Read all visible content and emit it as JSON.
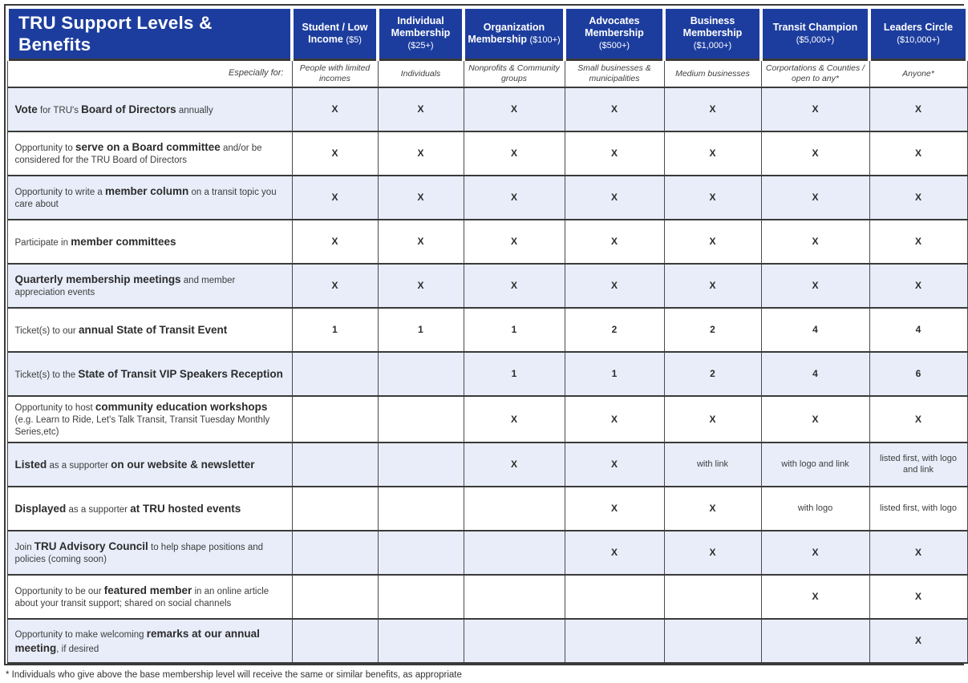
{
  "table": {
    "title": "TRU Support Levels & Benefits",
    "especially_label": "Especially for:",
    "columns": [
      {
        "name": "Student / Low Income",
        "price": "($5)",
        "especially": "People with limited incomes"
      },
      {
        "name": "Individual Membership",
        "price": "($25+)",
        "especially": "Individuals"
      },
      {
        "name": "Organization Membership",
        "price": "($100+)",
        "especially": "Nonprofits & Community groups"
      },
      {
        "name": "Advocates Membership",
        "price": "($500+)",
        "especially": "Small businesses & municipalities"
      },
      {
        "name": "Business Membership",
        "price": "($1,000+)",
        "especially": "Medium businesses"
      },
      {
        "name": "Transit Champion",
        "price": "($5,000+)",
        "especially": "Corportations & Counties / open to any*"
      },
      {
        "name": "Leaders Circle",
        "price": "($10,000+)",
        "especially": "Anyone*"
      }
    ],
    "rows": [
      {
        "benefit": "**Vote** for TRU's **Board of Directors** annually",
        "cells": [
          "X",
          "X",
          "X",
          "X",
          "X",
          "X",
          "X"
        ]
      },
      {
        "benefit": "Opportunity to **serve on a Board committee** and/or be considered for the TRU Board of Directors",
        "cells": [
          "X",
          "X",
          "X",
          "X",
          "X",
          "X",
          "X"
        ]
      },
      {
        "benefit": "Opportunity to write a **member column** on a transit topic you care about",
        "cells": [
          "X",
          "X",
          "X",
          "X",
          "X",
          "X",
          "X"
        ]
      },
      {
        "benefit": "Participate in **member committees**",
        "cells": [
          "X",
          "X",
          "X",
          "X",
          "X",
          "X",
          "X"
        ]
      },
      {
        "benefit": "**Quarterly membership meetings** and member appreciation events",
        "cells": [
          "X",
          "X",
          "X",
          "X",
          "X",
          "X",
          "X"
        ]
      },
      {
        "benefit": "Ticket(s) to our **annual State of Transit Event**",
        "cells": [
          "1",
          "1",
          "1",
          "2",
          "2",
          "4",
          "4"
        ]
      },
      {
        "benefit": "Ticket(s) to the **State of Transit VIP Speakers Reception**",
        "cells": [
          "",
          "",
          "1",
          "1",
          "2",
          "4",
          "6"
        ]
      },
      {
        "benefit": "Opportunity to host **community education workshops** (e.g. Learn to Ride, Let's Talk Transit, Transit Tuesday Monthly Series,etc)",
        "cells": [
          "",
          "",
          "X",
          "X",
          "X",
          "X",
          "X"
        ]
      },
      {
        "benefit": "**Listed** as a supporter **on our website & newsletter**",
        "cells": [
          "",
          "",
          "X",
          "X",
          "with link",
          "with logo and link",
          "listed first, with logo and link"
        ]
      },
      {
        "benefit": "**Displayed** as a supporter **at TRU hosted events**",
        "cells": [
          "",
          "",
          "",
          "X",
          "X",
          "with logo",
          "listed first, with logo"
        ]
      },
      {
        "benefit": "Join **TRU Advisory Council** to help shape positions and policies (coming soon)",
        "cells": [
          "",
          "",
          "",
          "X",
          "X",
          "X",
          "X"
        ]
      },
      {
        "benefit": "Opportunity to be our **featured member** in an online article about your transit support; shared on social channels",
        "cells": [
          "",
          "",
          "",
          "",
          "",
          "X",
          "X"
        ]
      },
      {
        "benefit": "Opportunity to make welcoming **remarks at our annual meeting**, if desired",
        "cells": [
          "",
          "",
          "",
          "",
          "",
          "",
          "X"
        ]
      }
    ],
    "footnote": "* Individuals who give above the base membership level will receive the same or similar benefits, as appropriate"
  },
  "colors": {
    "header_bg": "#1d3d9e",
    "row_alt_bg": "#e8edf9",
    "border": "#3a3a3a",
    "text": "#3d3d3d"
  }
}
